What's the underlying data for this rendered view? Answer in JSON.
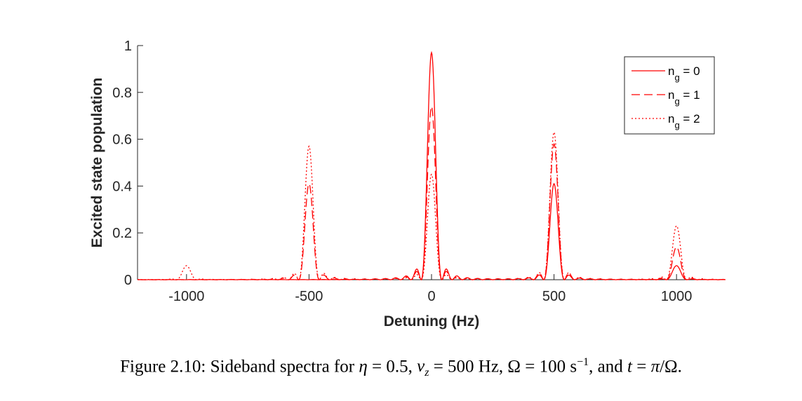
{
  "figure": {
    "caption_label": "Figure 2.10:",
    "caption_text": "Sideband spectra for η = 0.5, ν_z = 500 Hz, Ω = 100 s^-1, and t = π/Ω."
  },
  "chart_data": {
    "type": "line",
    "title": "",
    "xlabel": "Detuning (Hz)",
    "ylabel": "Excited state population",
    "xlim": [
      -1200,
      1200
    ],
    "ylim": [
      0,
      1
    ],
    "xticks": [
      -1000,
      -500,
      0,
      500,
      1000
    ],
    "xtick_labels": [
      "-1000",
      "-500",
      "0",
      "500",
      "1000"
    ],
    "yticks": [
      0,
      0.2,
      0.4,
      0.6,
      0.8,
      1
    ],
    "ytick_labels": [
      "0",
      "0.2",
      "0.4",
      "0.6",
      "0.8",
      "1"
    ],
    "grid": false,
    "legend_position": "top-right",
    "color": "#ff0000",
    "series": [
      {
        "name": "n_g = 0",
        "style": "solid",
        "peaks": [
          {
            "x": -1000,
            "y": 0
          },
          {
            "x": -500,
            "y": 0
          },
          {
            "x": 0,
            "y": 0.97
          },
          {
            "x": 500,
            "y": 0.41
          },
          {
            "x": 1000,
            "y": 0.06
          }
        ],
        "side_lobe": 0.09
      },
      {
        "name": "n_g = 1",
        "style": "dashed",
        "peaks": [
          {
            "x": -1000,
            "y": 0
          },
          {
            "x": -500,
            "y": 0.41
          },
          {
            "x": 0,
            "y": 0.74
          },
          {
            "x": 500,
            "y": 0.58
          },
          {
            "x": 1000,
            "y": 0.14
          }
        ],
        "side_lobe": 0.065
      },
      {
        "name": "n_g = 2",
        "style": "dotted",
        "peaks": [
          {
            "x": -1000,
            "y": 0.06
          },
          {
            "x": -500,
            "y": 0.57
          },
          {
            "x": 0,
            "y": 0.45
          },
          {
            "x": 500,
            "y": 0.63
          },
          {
            "x": 1000,
            "y": 0.23
          }
        ],
        "side_lobe": 0.045
      }
    ],
    "legend_entries": [
      {
        "base": "n",
        "sub": "g",
        "rest": " = 0"
      },
      {
        "base": "n",
        "sub": "g",
        "rest": " = 1"
      },
      {
        "base": "n",
        "sub": "g",
        "rest": " = 2"
      }
    ]
  }
}
